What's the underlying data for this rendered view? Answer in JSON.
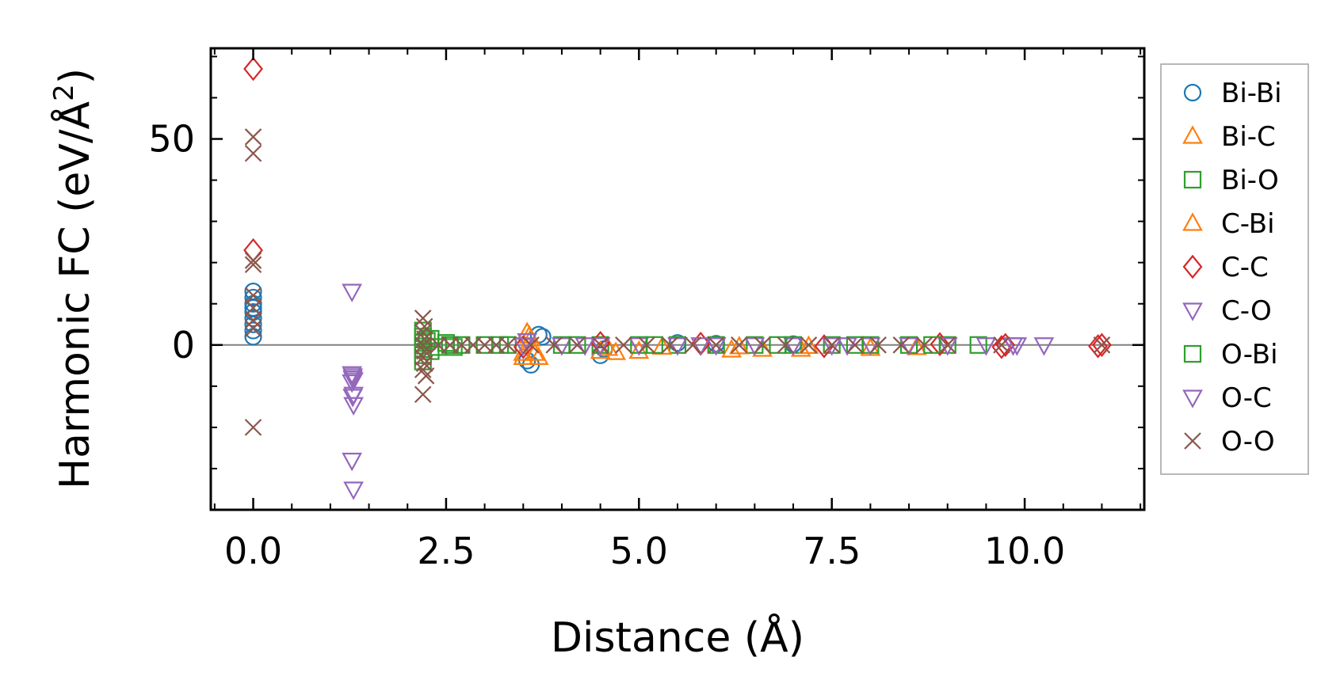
{
  "chart_data": {
    "type": "scatter",
    "xlabel": "Distance (Å)",
    "ylabel": "Harmonic FC (eV/Å",
    "ylabel_sup": "2",
    "ylabel_end": ")",
    "xlim": [
      -0.55,
      11.55
    ],
    "ylim": [
      -40,
      72
    ],
    "xticks": [
      {
        "value": 0.0,
        "label": "0.0"
      },
      {
        "value": 2.5,
        "label": "2.5"
      },
      {
        "value": 5.0,
        "label": "5.0"
      },
      {
        "value": 7.5,
        "label": "7.5"
      },
      {
        "value": 10.0,
        "label": "10.0"
      }
    ],
    "yticks": [
      {
        "value": 0,
        "label": "0"
      },
      {
        "value": 50,
        "label": "50"
      }
    ],
    "grid": false,
    "legend_position": "outside-right",
    "zero_line": true,
    "series": [
      {
        "name": "Bi-Bi",
        "marker": "circle",
        "color": "#1f77b4",
        "points": [
          [
            0,
            13.0
          ],
          [
            0,
            11.5
          ],
          [
            0,
            10.0
          ],
          [
            0,
            9.0
          ],
          [
            0,
            8.0
          ],
          [
            0,
            6.5
          ],
          [
            0,
            5.0
          ],
          [
            0,
            3.5
          ],
          [
            0,
            2.0
          ],
          [
            3.55,
            -3.8
          ],
          [
            3.6,
            -4.8
          ],
          [
            3.7,
            2.5
          ],
          [
            3.75,
            2.0
          ],
          [
            4.5,
            -2.5
          ],
          [
            4.55,
            -1.0
          ],
          [
            5.5,
            0.5
          ],
          [
            6.0,
            0.3
          ],
          [
            7.0,
            0.2
          ]
        ]
      },
      {
        "name": "Bi-C",
        "marker": "triangle-up",
        "color": "#ff7f0e",
        "points": [
          [
            3.5,
            -3.0
          ],
          [
            3.55,
            3.0
          ],
          [
            3.6,
            1.5
          ],
          [
            3.65,
            -2.0
          ],
          [
            4.5,
            -1.5
          ],
          [
            4.7,
            -1.8
          ],
          [
            5.0,
            -1.5
          ],
          [
            6.2,
            -1.2
          ],
          [
            6.6,
            -1.0
          ],
          [
            7.1,
            -1.0
          ],
          [
            8.0,
            -0.8
          ],
          [
            8.6,
            -0.6
          ]
        ]
      },
      {
        "name": "Bi-O",
        "marker": "square",
        "color": "#2ca02c",
        "points": [
          [
            2.2,
            3.5
          ],
          [
            2.2,
            2.0
          ],
          [
            2.2,
            0.5
          ],
          [
            2.2,
            -1.0
          ],
          [
            2.2,
            -2.5
          ],
          [
            2.2,
            -4.0
          ],
          [
            2.3,
            1.5
          ],
          [
            2.4,
            -0.5
          ],
          [
            2.55,
            0.0
          ],
          [
            2.7,
            0.0
          ],
          [
            3.0,
            0.0
          ],
          [
            3.3,
            0.0
          ],
          [
            4.0,
            0.0
          ],
          [
            4.5,
            0.0
          ],
          [
            5.0,
            0.0
          ],
          [
            5.5,
            0.0
          ],
          [
            6.0,
            0.0
          ],
          [
            6.5,
            0.0
          ],
          [
            7.0,
            0.0
          ],
          [
            7.5,
            0.0
          ],
          [
            8.0,
            0.0
          ],
          [
            8.5,
            0.0
          ],
          [
            9.0,
            0.0
          ],
          [
            9.4,
            0.0
          ]
        ]
      },
      {
        "name": "C-Bi",
        "marker": "triangle-up",
        "color": "#ff7f0e",
        "points": [
          [
            3.5,
            -2.0
          ],
          [
            3.58,
            2.2
          ],
          [
            3.7,
            -3.0
          ],
          [
            4.6,
            -0.8
          ],
          [
            5.3,
            -0.5
          ],
          [
            6.3,
            -0.4
          ],
          [
            7.2,
            -0.3
          ]
        ]
      },
      {
        "name": "C-C",
        "marker": "diamond",
        "color": "#d62728",
        "points": [
          [
            0,
            67.0
          ],
          [
            0,
            23.0
          ],
          [
            3.5,
            -0.5
          ],
          [
            4.5,
            0.5
          ],
          [
            5.8,
            0.3
          ],
          [
            7.4,
            -0.3
          ],
          [
            8.9,
            0.2
          ],
          [
            9.7,
            -0.5
          ],
          [
            9.75,
            0.0
          ],
          [
            10.95,
            -0.3
          ],
          [
            11.0,
            0.0
          ]
        ]
      },
      {
        "name": "C-O",
        "marker": "triangle-down",
        "color": "#9467bd",
        "points": [
          [
            1.28,
            13.0
          ],
          [
            1.28,
            -7.0
          ],
          [
            1.29,
            -8.0
          ],
          [
            1.3,
            -8.5
          ],
          [
            1.28,
            -9.0
          ],
          [
            1.29,
            -12.5
          ],
          [
            1.3,
            -14.5
          ],
          [
            1.28,
            -28.0
          ],
          [
            1.3,
            -35.0
          ],
          [
            3.5,
            0.0
          ],
          [
            4.0,
            0.0
          ],
          [
            4.5,
            0.0
          ],
          [
            5.0,
            0.0
          ],
          [
            5.5,
            0.0
          ],
          [
            6.0,
            0.0
          ],
          [
            6.5,
            0.0
          ],
          [
            7.0,
            0.0
          ],
          [
            7.5,
            0.0
          ],
          [
            8.0,
            0.0
          ],
          [
            8.5,
            0.0
          ],
          [
            9.0,
            0.0
          ],
          [
            9.5,
            0.0
          ],
          [
            9.85,
            0.0
          ],
          [
            10.25,
            0.0
          ]
        ]
      },
      {
        "name": "O-Bi",
        "marker": "square",
        "color": "#2ca02c",
        "points": [
          [
            2.25,
            1.0
          ],
          [
            2.3,
            -1.5
          ],
          [
            2.5,
            0.5
          ],
          [
            2.6,
            -0.5
          ],
          [
            3.2,
            0.0
          ],
          [
            4.2,
            0.0
          ],
          [
            5.2,
            0.0
          ],
          [
            6.8,
            0.0
          ],
          [
            7.8,
            0.0
          ],
          [
            8.8,
            0.0
          ]
        ]
      },
      {
        "name": "O-C",
        "marker": "triangle-down",
        "color": "#9467bd",
        "points": [
          [
            1.29,
            -7.5
          ],
          [
            1.3,
            -12.0
          ],
          [
            3.55,
            1.0
          ],
          [
            4.3,
            0.0
          ],
          [
            5.8,
            0.0
          ],
          [
            7.7,
            0.0
          ],
          [
            9.9,
            0.0
          ]
        ]
      },
      {
        "name": "O-O",
        "marker": "x",
        "color": "#8c564b",
        "points": [
          [
            0,
            50.5
          ],
          [
            0,
            46.5
          ],
          [
            0,
            20.5
          ],
          [
            0,
            19.5
          ],
          [
            0,
            12.0
          ],
          [
            0,
            9.0
          ],
          [
            0,
            6.0
          ],
          [
            0,
            4.0
          ],
          [
            0,
            -20.0
          ],
          [
            2.2,
            6.5
          ],
          [
            2.22,
            4.5
          ],
          [
            2.2,
            3.0
          ],
          [
            2.22,
            1.5
          ],
          [
            2.2,
            0.0
          ],
          [
            2.22,
            -1.5
          ],
          [
            2.2,
            -3.0
          ],
          [
            2.22,
            -4.5
          ],
          [
            2.2,
            -6.0
          ],
          [
            2.24,
            -7.5
          ],
          [
            2.2,
            -12.0
          ],
          [
            2.4,
            0.0
          ],
          [
            2.55,
            0.0
          ],
          [
            2.7,
            0.0
          ],
          [
            2.85,
            0.0
          ],
          [
            3.0,
            0.0
          ],
          [
            3.15,
            0.0
          ],
          [
            3.3,
            0.0
          ],
          [
            3.6,
            0.0
          ],
          [
            3.9,
            0.0
          ],
          [
            4.2,
            0.0
          ],
          [
            4.5,
            0.0
          ],
          [
            4.8,
            0.0
          ],
          [
            5.1,
            0.0
          ],
          [
            5.4,
            0.0
          ],
          [
            5.7,
            0.0
          ],
          [
            6.0,
            0.0
          ],
          [
            6.3,
            0.0
          ],
          [
            6.6,
            0.0
          ],
          [
            6.9,
            0.0
          ],
          [
            7.2,
            0.0
          ],
          [
            7.5,
            0.0
          ],
          [
            7.8,
            0.0
          ],
          [
            8.1,
            0.0
          ],
          [
            8.4,
            0.0
          ],
          [
            8.7,
            0.0
          ],
          [
            9.0,
            0.0
          ],
          [
            9.7,
            0.0
          ],
          [
            11.0,
            0.0
          ]
        ]
      }
    ]
  }
}
